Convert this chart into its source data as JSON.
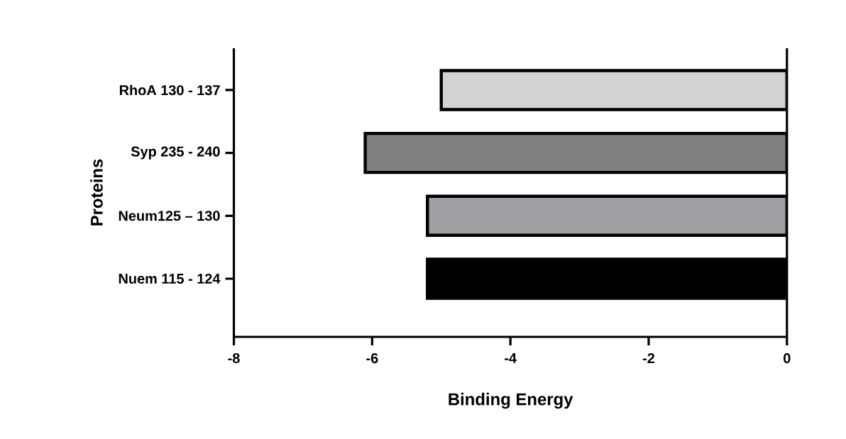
{
  "chart_data": {
    "type": "bar",
    "orientation": "horizontal",
    "xlabel": "Binding Energy",
    "ylabel": "Proteins",
    "categories": [
      "RhoA 130 - 137",
      "Syp 235 - 240",
      "Neum125 – 130",
      "Nuem 115 - 124"
    ],
    "values": [
      -5.0,
      -6.1,
      -5.2,
      -5.2
    ],
    "colors": [
      "#d3d3d3",
      "#808080",
      "#a0a0a4",
      "#000000"
    ],
    "xlim": [
      -8,
      0
    ],
    "xticks": [
      -8,
      -6,
      -4,
      -2,
      0
    ],
    "grid": false
  }
}
